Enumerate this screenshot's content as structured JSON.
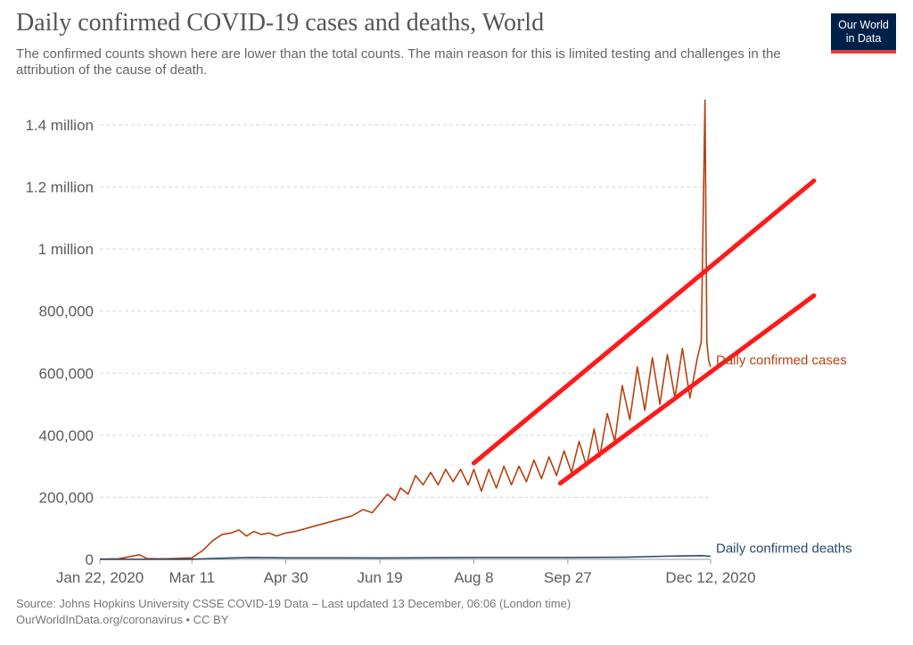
{
  "title": "Daily confirmed COVID-19 cases and deaths, World",
  "subtitle": "The confirmed counts shown here are lower than the total counts. The main reason for this is limited testing and challenges in the attribution of the cause of death.",
  "logo": {
    "line1": "Our World",
    "line2": "in Data"
  },
  "footer": {
    "source": "Source: Johns Hopkins University CSSE COVID-19 Data – Last updated 13 December, 06:06 (London time)",
    "link": "OurWorldInData.org/coronavirus • CC BY"
  },
  "colors": {
    "cases": "#b7410e",
    "deaths": "#2c4a6b",
    "annotation": "#ff1a1a",
    "grid": "#d7d7d7",
    "logo_bg": "#002147"
  },
  "chart_data": {
    "type": "line",
    "title": "Daily confirmed COVID-19 cases and deaths, World",
    "xlabel": "",
    "ylabel": "",
    "x_range": [
      "Jan 22, 2020",
      "Dec 12, 2020"
    ],
    "ylim": [
      0,
      1400000
    ],
    "y_ticks": [
      0,
      200000,
      400000,
      600000,
      800000,
      1000000,
      1200000,
      1400000
    ],
    "y_tick_labels": [
      "0",
      "200,000",
      "400,000",
      "600,000",
      "800,000",
      "1 million",
      "1.2 million",
      "1.4 million"
    ],
    "x_ticks": [
      "Jan 22, 2020",
      "Mar 11",
      "Apr 30",
      "Jun 19",
      "Aug 8",
      "Sep 27",
      "Dec 12, 2020"
    ],
    "x_tick_days": [
      0,
      49,
      99,
      149,
      199,
      249,
      325
    ],
    "grid": true,
    "series": [
      {
        "name": "Daily confirmed cases",
        "x_days": [
          0,
          10,
          21,
          25,
          30,
          35,
          40,
          45,
          49,
          55,
          60,
          65,
          70,
          74,
          78,
          82,
          86,
          90,
          94,
          99,
          104,
          110,
          116,
          122,
          128,
          134,
          140,
          145,
          149,
          153,
          157,
          160,
          164,
          168,
          172,
          176,
          180,
          184,
          188,
          192,
          196,
          199,
          203,
          207,
          211,
          215,
          219,
          223,
          227,
          231,
          235,
          239,
          243,
          247,
          251,
          255,
          259,
          263,
          266,
          270,
          274,
          278,
          282,
          286,
          290,
          294,
          298,
          302,
          306,
          310,
          314,
          318,
          320,
          322,
          323,
          324,
          325
        ],
        "values": [
          1000,
          2000,
          15000,
          3000,
          2000,
          2000,
          3000,
          4000,
          5000,
          30000,
          60000,
          80000,
          85000,
          95000,
          75000,
          90000,
          80000,
          85000,
          75000,
          85000,
          90000,
          100000,
          110000,
          120000,
          130000,
          140000,
          160000,
          150000,
          180000,
          210000,
          190000,
          230000,
          210000,
          270000,
          240000,
          280000,
          240000,
          290000,
          250000,
          290000,
          240000,
          290000,
          220000,
          290000,
          230000,
          300000,
          240000,
          300000,
          250000,
          320000,
          260000,
          330000,
          270000,
          350000,
          280000,
          380000,
          300000,
          420000,
          330000,
          470000,
          380000,
          560000,
          450000,
          620000,
          480000,
          650000,
          500000,
          660000,
          520000,
          680000,
          520000,
          650000,
          700000,
          1480000,
          700000,
          640000,
          620000
        ]
      },
      {
        "name": "Daily confirmed deaths",
        "x_days": [
          0,
          49,
          60,
          80,
          100,
          150,
          200,
          250,
          280,
          300,
          310,
          320,
          325
        ],
        "values": [
          0,
          300,
          3000,
          6000,
          5000,
          4500,
          6000,
          6000,
          7000,
          10000,
          11000,
          12000,
          10000
        ]
      }
    ],
    "annotations": [
      {
        "type": "trend-line",
        "from": {
          "x_day": 199,
          "y": 310000
        },
        "to": {
          "x_day": 380,
          "y": 1220000
        }
      },
      {
        "type": "trend-line",
        "from": {
          "x_day": 245,
          "y": 245000
        },
        "to": {
          "x_day": 380,
          "y": 850000
        }
      }
    ]
  }
}
